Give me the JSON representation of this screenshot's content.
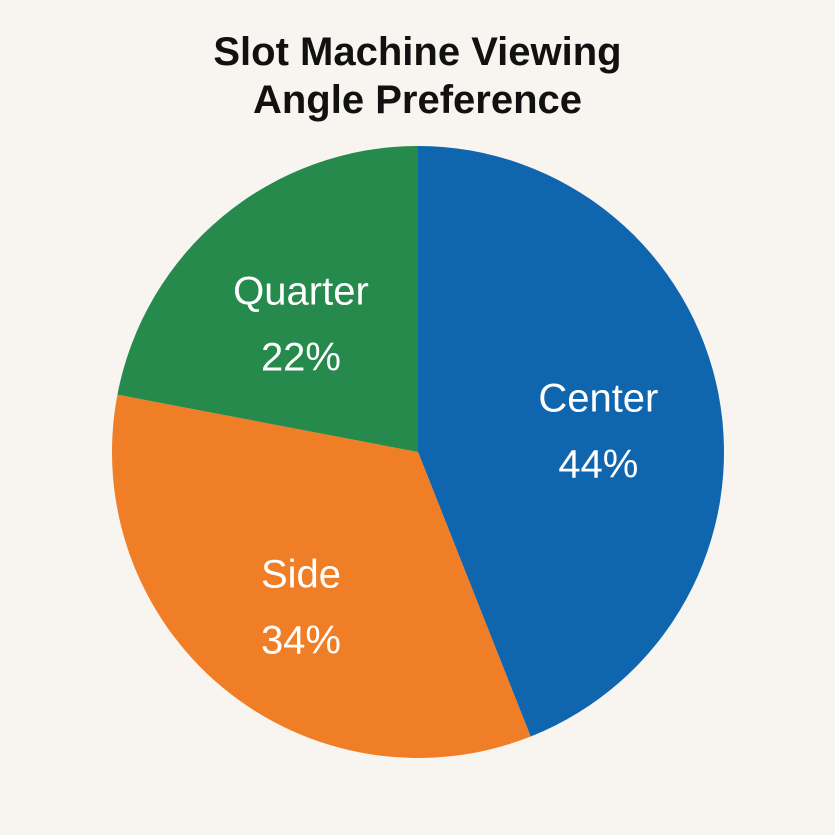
{
  "chart_data": {
    "type": "pie",
    "title_lines": [
      "Slot Machine Viewing",
      "Angle Preference"
    ],
    "slices": [
      {
        "label": "Center",
        "value": 44,
        "value_label": "44%",
        "color": "#1066ae"
      },
      {
        "label": "Side",
        "value": 34,
        "value_label": "34%",
        "color": "#f07e26"
      },
      {
        "label": "Quarter",
        "value": 22,
        "value_label": "22%",
        "color": "#258a4c"
      }
    ],
    "start_angle_deg": 0,
    "direction": "clockwise",
    "legend": "none"
  }
}
